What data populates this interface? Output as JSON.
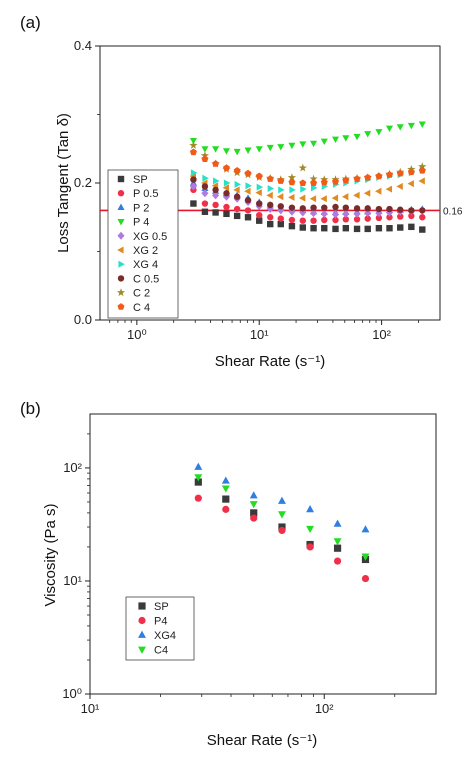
{
  "chart_data": [
    {
      "panel_label": "(a)",
      "type": "scatter",
      "xlabel": "Shear Rate (s⁻¹)",
      "ylabel": "Loss Tangent (Tan δ)",
      "xscale": "log",
      "xlim": [
        0.5,
        300
      ],
      "ylim": [
        0.0,
        0.4
      ],
      "x_ticks": [
        {
          "v": 1,
          "label": "10⁰"
        },
        {
          "v": 10,
          "label": "10¹"
        },
        {
          "v": 100,
          "label": "10²"
        }
      ],
      "y_ticks": [
        {
          "v": 0.0,
          "label": "0.0"
        },
        {
          "v": 0.2,
          "label": "0.2"
        },
        {
          "v": 0.4,
          "label": "0.4"
        }
      ],
      "grid": false,
      "legend_position": "left",
      "reference_line": {
        "y": 0.16,
        "label": "0.16",
        "color": "#e8162b"
      },
      "x": [
        2.9,
        3.6,
        4.4,
        5.4,
        6.6,
        8.1,
        10,
        12.3,
        15,
        18.5,
        22.7,
        27.8,
        34,
        42,
        51,
        63,
        77,
        95,
        116,
        142,
        175,
        215
      ],
      "series": [
        {
          "name": "SP",
          "marker": "square",
          "color": "#3a3a3a",
          "values": [
            0.17,
            0.158,
            0.157,
            0.155,
            0.152,
            0.15,
            0.145,
            0.14,
            0.14,
            0.137,
            0.135,
            0.134,
            0.134,
            0.133,
            0.134,
            0.133,
            0.133,
            0.134,
            0.134,
            0.135,
            0.136,
            0.132
          ]
        },
        {
          "name": "P 0.5",
          "marker": "circle",
          "color": "#f0304a",
          "values": [
            0.19,
            0.17,
            0.168,
            0.165,
            0.162,
            0.16,
            0.153,
            0.15,
            0.148,
            0.146,
            0.145,
            0.145,
            0.146,
            0.146,
            0.147,
            0.147,
            0.148,
            0.149,
            0.15,
            0.151,
            0.152,
            0.15
          ]
        },
        {
          "name": "P 2",
          "marker": "triangle-up",
          "color": "#2f7fe0",
          "values": [
            0.2,
            0.192,
            0.188,
            0.185,
            0.182,
            0.178,
            0.172,
            0.168,
            0.164,
            0.162,
            0.16,
            0.158,
            0.157,
            0.157,
            0.157,
            0.158,
            0.158,
            0.159,
            0.16,
            0.16,
            0.161,
            0.162
          ]
        },
        {
          "name": "P 4",
          "marker": "triangle-down",
          "color": "#22dd22",
          "values": [
            0.262,
            0.25,
            0.25,
            0.247,
            0.246,
            0.248,
            0.25,
            0.252,
            0.253,
            0.255,
            0.257,
            0.258,
            0.261,
            0.264,
            0.266,
            0.268,
            0.272,
            0.275,
            0.28,
            0.282,
            0.284,
            0.286
          ]
        },
        {
          "name": "XG 0.5",
          "marker": "diamond",
          "color": "#b07ae0",
          "values": [
            0.195,
            0.185,
            0.182,
            0.18,
            0.177,
            0.172,
            0.166,
            0.162,
            0.16,
            0.158,
            0.157,
            0.156,
            0.155,
            0.154,
            0.155,
            0.155,
            0.156,
            0.156,
            0.157,
            0.158,
            0.159,
            0.16
          ]
        },
        {
          "name": "XG 2",
          "marker": "triangle-left",
          "color": "#e08a20",
          "values": [
            0.21,
            0.2,
            0.196,
            0.193,
            0.19,
            0.188,
            0.186,
            0.182,
            0.18,
            0.179,
            0.178,
            0.177,
            0.177,
            0.178,
            0.18,
            0.182,
            0.185,
            0.188,
            0.191,
            0.195,
            0.199,
            0.203
          ]
        },
        {
          "name": "XG 4",
          "marker": "triangle-right",
          "color": "#28e0c8",
          "values": [
            0.215,
            0.207,
            0.203,
            0.2,
            0.198,
            0.196,
            0.194,
            0.192,
            0.19,
            0.19,
            0.191,
            0.193,
            0.195,
            0.198,
            0.2,
            0.203,
            0.205,
            0.208,
            0.21,
            0.212,
            0.215,
            0.22
          ]
        },
        {
          "name": "C 0.5",
          "marker": "circle",
          "color": "#7a2c2c",
          "values": [
            0.205,
            0.195,
            0.19,
            0.185,
            0.18,
            0.175,
            0.17,
            0.168,
            0.166,
            0.164,
            0.163,
            0.164,
            0.164,
            0.165,
            0.164,
            0.163,
            0.163,
            0.162,
            0.162,
            0.161,
            0.16,
            0.16
          ]
        },
        {
          "name": "C 2",
          "marker": "star",
          "color": "#a08a2a",
          "values": [
            0.255,
            0.24,
            0.228,
            0.22,
            0.215,
            0.212,
            0.208,
            0.207,
            0.205,
            0.208,
            0.222,
            0.206,
            0.205,
            0.205,
            0.206,
            0.207,
            0.208,
            0.21,
            0.213,
            0.216,
            0.22,
            0.224
          ]
        },
        {
          "name": "C 4",
          "marker": "pentagon",
          "color": "#f25a18",
          "values": [
            0.245,
            0.235,
            0.228,
            0.222,
            0.218,
            0.214,
            0.21,
            0.206,
            0.203,
            0.201,
            0.2,
            0.2,
            0.201,
            0.202,
            0.204,
            0.206,
            0.208,
            0.21,
            0.212,
            0.214,
            0.216,
            0.218
          ]
        }
      ]
    },
    {
      "panel_label": "(b)",
      "type": "scatter",
      "xlabel": "Shear Rate (s⁻¹)",
      "ylabel": "Viscosity (Pa s)",
      "xscale": "log",
      "yscale": "log",
      "xlim": [
        10,
        300
      ],
      "ylim": [
        1,
        300
      ],
      "x_ticks": [
        {
          "v": 10,
          "label": "10¹"
        },
        {
          "v": 100,
          "label": "10²"
        }
      ],
      "y_ticks": [
        {
          "v": 1,
          "label": "10⁰"
        },
        {
          "v": 10,
          "label": "10¹"
        },
        {
          "v": 100,
          "label": "10²"
        }
      ],
      "grid": false,
      "legend_position": "bottom-left",
      "x": [
        29,
        38,
        50,
        66,
        87,
        114,
        150
      ],
      "series": [
        {
          "name": "SP",
          "marker": "square",
          "color": "#3a3a3a",
          "values": [
            75,
            53,
            40,
            30,
            21,
            19.5,
            15.5
          ]
        },
        {
          "name": "P4",
          "marker": "circle",
          "color": "#f0304a",
          "values": [
            54,
            43,
            36,
            28,
            20,
            15,
            10.5
          ]
        },
        {
          "name": "XG4",
          "marker": "triangle-up",
          "color": "#2f7fe0",
          "values": [
            102,
            77,
            57,
            51,
            43,
            32,
            28.5
          ]
        },
        {
          "name": "C4",
          "marker": "triangle-down",
          "color": "#22dd22",
          "values": [
            83,
            66,
            48,
            39,
            29,
            22.5,
            16.5
          ]
        }
      ]
    }
  ]
}
